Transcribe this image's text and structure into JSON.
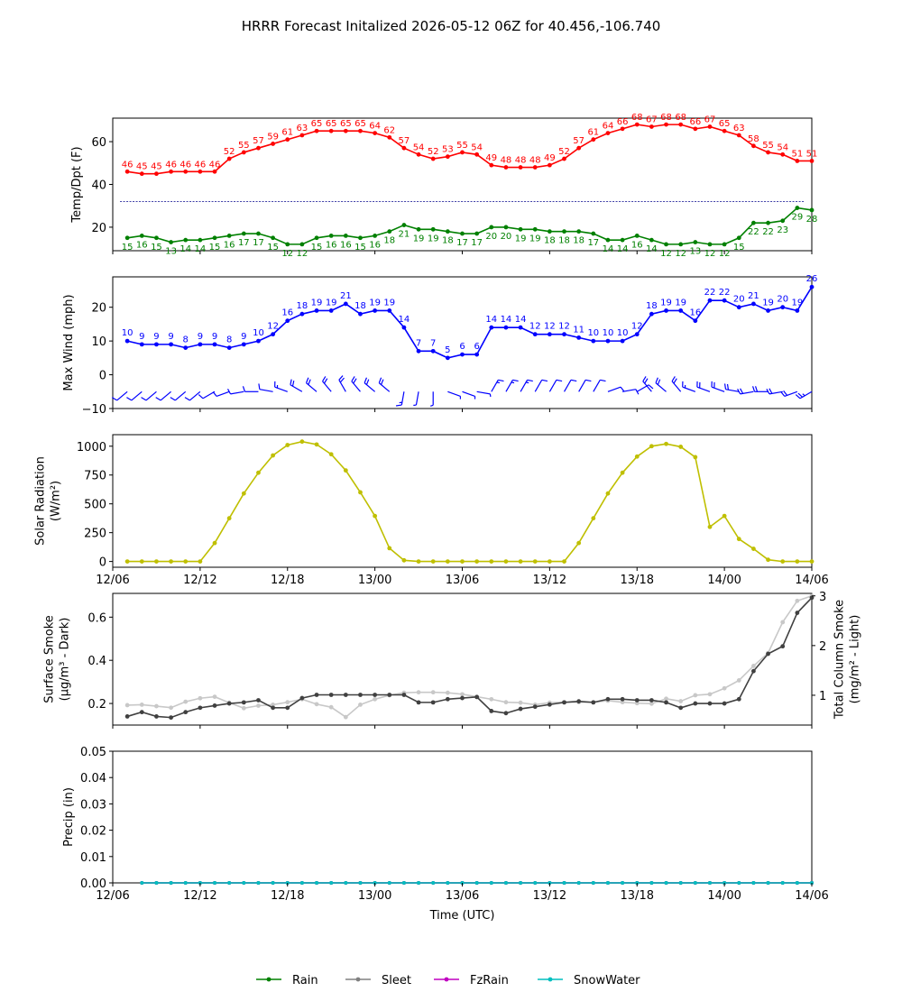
{
  "title": "HRRR Forecast Initalized 2026-05-12 06Z for 40.456,-106.740",
  "colors": {
    "temp": "#ff0000",
    "dewpoint": "#008000",
    "freezing_line": "#00008b",
    "wind": "#0000ff",
    "solar": "#bfbf00",
    "smoke_surface": "#404040",
    "smoke_column": "#c8c8c8",
    "rain": "#008000",
    "sleet": "#808080",
    "fzrain": "#c000c0",
    "snowwater": "#00bfbf"
  },
  "chart_data": [
    {
      "type": "line",
      "panel": "temperature",
      "ylabel": "Temp/Dpt (F)",
      "x_ticks": [
        "12/06",
        "12/12",
        "12/18",
        "13/00",
        "13/06",
        "13/12",
        "13/18",
        "14/00",
        "14/06"
      ],
      "ylim": [
        9,
        71
      ],
      "yticks": [
        20,
        40,
        60
      ],
      "reference_line": 32,
      "series": [
        {
          "values": [
            46,
            45,
            45,
            46,
            46,
            46,
            46,
            52,
            55,
            57,
            59,
            61,
            63,
            65,
            65,
            65,
            65,
            64,
            62,
            57,
            54,
            52,
            53,
            55,
            54,
            49,
            48,
            48,
            48,
            49,
            52,
            57,
            61,
            64,
            66,
            68,
            67,
            68,
            68,
            66,
            67,
            65,
            63,
            58,
            55,
            54,
            51,
            51
          ]
        },
        {
          "values": [
            15,
            16,
            15,
            13,
            14,
            14,
            15,
            16,
            17,
            17,
            15,
            12,
            12,
            15,
            16,
            16,
            15,
            16,
            18,
            21,
            19,
            19,
            18,
            17,
            17,
            20,
            20,
            19,
            19,
            18,
            18,
            18,
            17,
            14,
            14,
            16,
            14,
            12,
            12,
            13,
            12,
            12,
            15,
            22,
            22,
            23,
            29,
            28
          ]
        }
      ]
    },
    {
      "type": "line",
      "panel": "wind",
      "ylabel": "Max Wind (mph)",
      "ylim": [
        -10,
        29
      ],
      "yticks": [
        -10,
        0,
        10,
        20
      ],
      "series": [
        {
          "values": [
            10,
            9,
            9,
            9,
            8,
            9,
            9,
            8,
            9,
            10,
            12,
            16,
            18,
            19,
            19,
            21,
            18,
            19,
            19,
            14,
            7,
            7,
            5,
            6,
            6,
            14,
            14,
            14,
            12,
            12,
            12,
            11,
            10,
            10,
            10,
            12,
            18,
            19,
            19,
            16,
            22,
            22,
            20,
            21,
            19,
            20,
            19,
            26
          ]
        }
      ],
      "barb_directions_deg": [
        230,
        230,
        230,
        230,
        230,
        230,
        240,
        250,
        260,
        270,
        280,
        290,
        300,
        310,
        320,
        330,
        320,
        310,
        310,
        190,
        190,
        180,
        110,
        110,
        100,
        30,
        30,
        30,
        30,
        30,
        30,
        30,
        30,
        70,
        80,
        60,
        320,
        310,
        320,
        290,
        290,
        290,
        280,
        260,
        270,
        260,
        250,
        240
      ]
    },
    {
      "type": "line",
      "panel": "solar",
      "ylabel": "Solar Radiation",
      "ylabel_units": "(W/m²)",
      "ylim": [
        -50,
        1100
      ],
      "yticks": [
        0,
        250,
        500,
        750,
        1000
      ],
      "series": [
        {
          "values": [
            0,
            0,
            0,
            0,
            0,
            0,
            160,
            375,
            590,
            770,
            920,
            1010,
            1040,
            1015,
            930,
            790,
            600,
            395,
            115,
            10,
            0,
            0,
            0,
            0,
            0,
            0,
            0,
            0,
            0,
            0,
            0,
            160,
            375,
            590,
            770,
            910,
            1000,
            1020,
            995,
            905,
            300,
            395,
            195,
            110,
            15,
            0,
            0,
            0
          ]
        }
      ]
    },
    {
      "type": "line",
      "panel": "smoke",
      "ylabel": "Surface Smoke",
      "ylabel_units": "(μg/m³ - Dark)",
      "ylabel_right": "Total Column Smoke",
      "ylabel_right_units": "(mg/m² - Light)",
      "ylim": [
        0.1,
        0.71
      ],
      "yticks": [
        0.2,
        0.4,
        0.6
      ],
      "y2lim": [
        0.4,
        3.05
      ],
      "y2ticks": [
        1,
        2,
        3
      ],
      "series": [
        {
          "values": [
            0.14,
            0.16,
            0.14,
            0.135,
            0.16,
            0.18,
            0.19,
            0.2,
            0.205,
            0.215,
            0.18,
            0.18,
            0.225,
            0.24,
            0.24,
            0.24,
            0.24,
            0.24,
            0.24,
            0.24,
            0.205,
            0.205,
            0.22,
            0.225,
            0.23,
            0.165,
            0.155,
            0.175,
            0.185,
            0.195,
            0.205,
            0.21,
            0.205,
            0.22,
            0.22,
            0.215,
            0.215,
            0.205,
            0.18,
            0.2,
            0.2,
            0.2,
            0.22,
            0.35,
            0.43,
            0.465,
            0.62,
            0.69
          ]
        },
        {
          "values": [
            0.8,
            0.81,
            0.78,
            0.75,
            0.87,
            0.94,
            0.97,
            0.85,
            0.74,
            0.79,
            0.81,
            0.86,
            0.92,
            0.82,
            0.76,
            0.56,
            0.81,
            0.92,
            1.0,
            1.05,
            1.06,
            1.06,
            1.05,
            1.02,
            0.97,
            0.92,
            0.86,
            0.85,
            0.81,
            0.85,
            0.86,
            0.86,
            0.86,
            0.89,
            0.86,
            0.84,
            0.83,
            0.93,
            0.88,
            1.0,
            1.02,
            1.14,
            1.3,
            1.59,
            1.85,
            2.47,
            2.9,
            3.0
          ]
        }
      ]
    },
    {
      "type": "line",
      "panel": "precip",
      "ylabel": "Precip (in)",
      "xlabel": "Time (UTC)",
      "ylim": [
        0,
        0.05
      ],
      "yticks": [
        "0.00",
        "0.01",
        "0.02",
        "0.03",
        "0.04",
        "0.05"
      ],
      "series": [
        {
          "name": "Rain",
          "values": [
            0,
            0,
            0,
            0,
            0,
            0,
            0,
            0,
            0,
            0,
            0,
            0,
            0,
            0,
            0,
            0,
            0,
            0,
            0,
            0,
            0,
            0,
            0,
            0,
            0,
            0,
            0,
            0,
            0,
            0,
            0,
            0,
            0,
            0,
            0,
            0,
            0,
            0,
            0,
            0,
            0,
            0,
            0,
            0,
            0,
            0,
            0
          ]
        },
        {
          "name": "Sleet",
          "values": [
            0,
            0,
            0,
            0,
            0,
            0,
            0,
            0,
            0,
            0,
            0,
            0,
            0,
            0,
            0,
            0,
            0,
            0,
            0,
            0,
            0,
            0,
            0,
            0,
            0,
            0,
            0,
            0,
            0,
            0,
            0,
            0,
            0,
            0,
            0,
            0,
            0,
            0,
            0,
            0,
            0,
            0,
            0,
            0,
            0,
            0,
            0
          ]
        },
        {
          "name": "FzRain",
          "values": [
            0,
            0,
            0,
            0,
            0,
            0,
            0,
            0,
            0,
            0,
            0,
            0,
            0,
            0,
            0,
            0,
            0,
            0,
            0,
            0,
            0,
            0,
            0,
            0,
            0,
            0,
            0,
            0,
            0,
            0,
            0,
            0,
            0,
            0,
            0,
            0,
            0,
            0,
            0,
            0,
            0,
            0,
            0,
            0,
            0,
            0,
            0
          ]
        },
        {
          "name": "SnowWater",
          "values": [
            0,
            0,
            0,
            0,
            0,
            0,
            0,
            0,
            0,
            0,
            0,
            0,
            0,
            0,
            0,
            0,
            0,
            0,
            0,
            0,
            0,
            0,
            0,
            0,
            0,
            0,
            0,
            0,
            0,
            0,
            0,
            0,
            0,
            0,
            0,
            0,
            0,
            0,
            0,
            0,
            0,
            0,
            0,
            0,
            0,
            0,
            0
          ]
        }
      ]
    }
  ]
}
